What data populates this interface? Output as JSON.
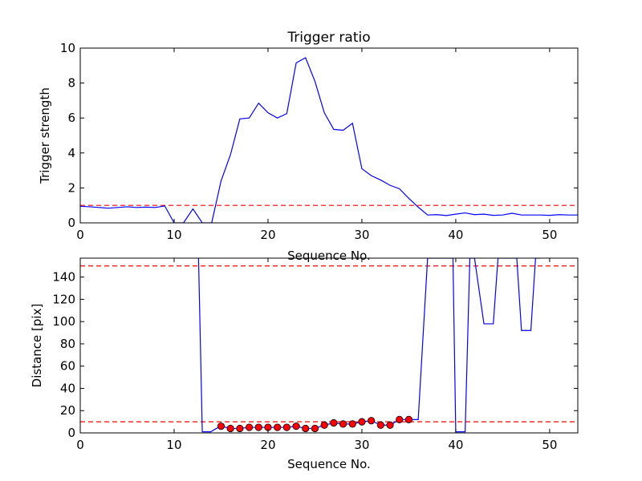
{
  "chart_data": [
    {
      "type": "line",
      "title": "Trigger ratio",
      "xlabel": "Sequence No.",
      "ylabel": "Trigger strength",
      "xlim": [
        0,
        53
      ],
      "ylim": [
        0,
        10
      ],
      "xticks": [
        "0",
        "10",
        "20",
        "30",
        "40",
        "50"
      ],
      "yticks": [
        "0",
        "2",
        "4",
        "6",
        "8",
        "10"
      ],
      "grid": false,
      "line_color": "#0000ff",
      "threshold_color": "#ff0000",
      "thresholds": [
        1.0
      ],
      "x": [
        0,
        1,
        2,
        3,
        4,
        5,
        6,
        7,
        8,
        9,
        10,
        11,
        12,
        13,
        14,
        15,
        16,
        17,
        18,
        19,
        20,
        21,
        22,
        23,
        24,
        25,
        26,
        27,
        28,
        29,
        30,
        31,
        32,
        33,
        34,
        35,
        36,
        37,
        38,
        39,
        40,
        41,
        42,
        43,
        44,
        45,
        46,
        47,
        48,
        49,
        50,
        51,
        52,
        53
      ],
      "values": [
        0.95,
        0.92,
        0.88,
        0.84,
        0.88,
        0.92,
        0.88,
        0.9,
        0.88,
        0.97,
        0.0,
        0.0,
        0.8,
        0.0,
        0.0,
        2.4,
        3.9,
        5.95,
        6.0,
        6.85,
        6.3,
        6.0,
        6.25,
        9.15,
        9.45,
        8.1,
        6.3,
        5.35,
        5.3,
        5.7,
        3.1,
        2.7,
        2.45,
        2.15,
        1.95,
        1.4,
        0.9,
        0.45,
        0.47,
        0.42,
        0.5,
        0.57,
        0.47,
        0.5,
        0.43,
        0.45,
        0.55,
        0.45,
        0.45,
        0.45,
        0.43,
        0.47,
        0.45,
        0.45
      ]
    },
    {
      "type": "line",
      "title": "",
      "xlabel": "Sequence No.",
      "ylabel": "Distance [pix]",
      "xlim": [
        0,
        53
      ],
      "ylim": [
        0,
        157
      ],
      "xticks": [
        "0",
        "10",
        "20",
        "30",
        "40",
        "50"
      ],
      "yticks": [
        "0",
        "20",
        "40",
        "60",
        "80",
        "100",
        "120",
        "140"
      ],
      "grid": false,
      "line_color": "#0000ff",
      "threshold_color": "#ff0000",
      "marker_color": "#ff0000",
      "thresholds": [
        10,
        150
      ],
      "x": [
        12.6,
        13,
        13.9,
        14.5,
        15,
        16,
        17,
        18,
        19,
        20,
        21,
        22,
        23,
        24,
        25,
        26,
        27,
        28,
        29,
        30,
        31,
        32,
        33,
        34,
        35,
        36,
        37,
        38,
        39,
        39.7,
        40,
        41,
        41.5,
        42,
        43,
        44,
        44.5,
        45,
        46,
        46.5,
        47,
        48,
        48.5,
        49
      ],
      "values": [
        157,
        1,
        1,
        4,
        6,
        4,
        4,
        5,
        5,
        5,
        5,
        5,
        6,
        4,
        4,
        7,
        9,
        8,
        8,
        10,
        11,
        7,
        7,
        12,
        12,
        12,
        157,
        157,
        157,
        157,
        1,
        1,
        157,
        157,
        98,
        98,
        157,
        157,
        157,
        157,
        92,
        92,
        157,
        157
      ],
      "markers": {
        "x": [
          15,
          16,
          17,
          18,
          19,
          20,
          21,
          22,
          23,
          24,
          25,
          26,
          27,
          28,
          29,
          30,
          31,
          32,
          33,
          34,
          35
        ],
        "y": [
          6,
          4,
          4,
          5,
          5,
          5,
          5,
          5,
          6,
          4,
          4,
          7,
          9,
          8,
          8,
          10,
          11,
          7,
          7,
          12,
          12
        ]
      }
    }
  ]
}
